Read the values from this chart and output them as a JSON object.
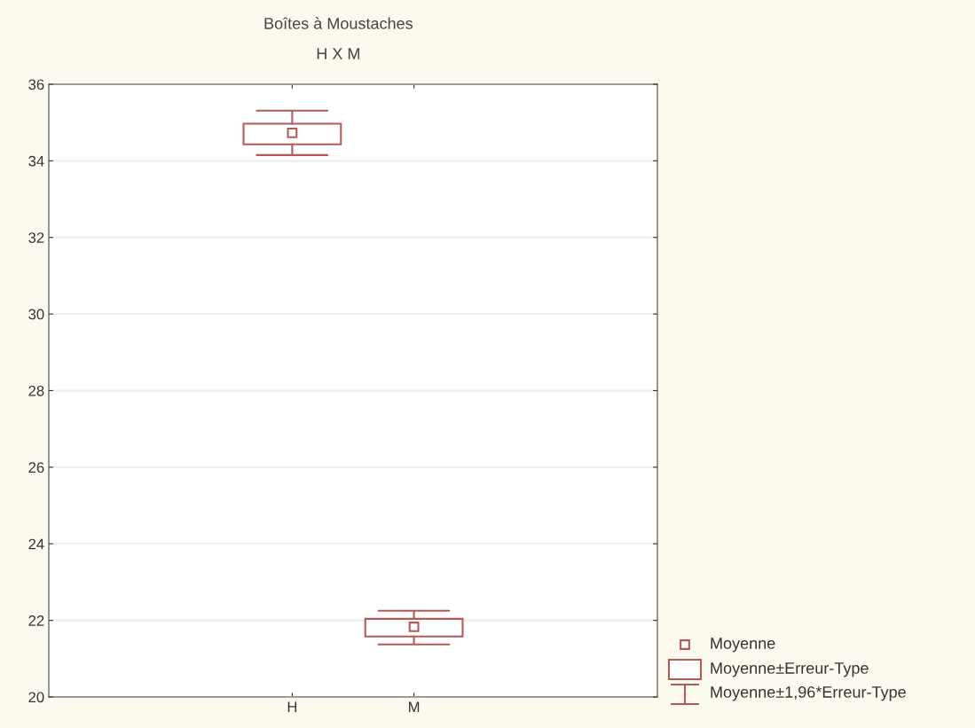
{
  "chart_data": {
    "type": "box",
    "title": "Boîtes à Moustaches",
    "subtitle": "H X M",
    "categories": [
      "H",
      "M"
    ],
    "series": [
      {
        "color": "#b35a5a",
        "boxes": [
          {
            "low": 34.15,
            "q1": 34.43,
            "q3": 34.97,
            "high": 35.31,
            "mean": 34.73
          },
          {
            "low": 21.37,
            "q1": 21.58,
            "q3": 22.04,
            "high": 22.25,
            "mean": 21.83
          }
        ]
      }
    ],
    "ylim": [
      20,
      36
    ],
    "yticks": [
      20,
      22,
      24,
      26,
      28,
      30,
      32,
      34,
      36
    ],
    "grid": "y",
    "marker": "square",
    "annotations": [
      "Moyenne",
      "Moyenne±Erreur-Type",
      "Moyenne±1,96*Erreur-Type"
    ]
  }
}
